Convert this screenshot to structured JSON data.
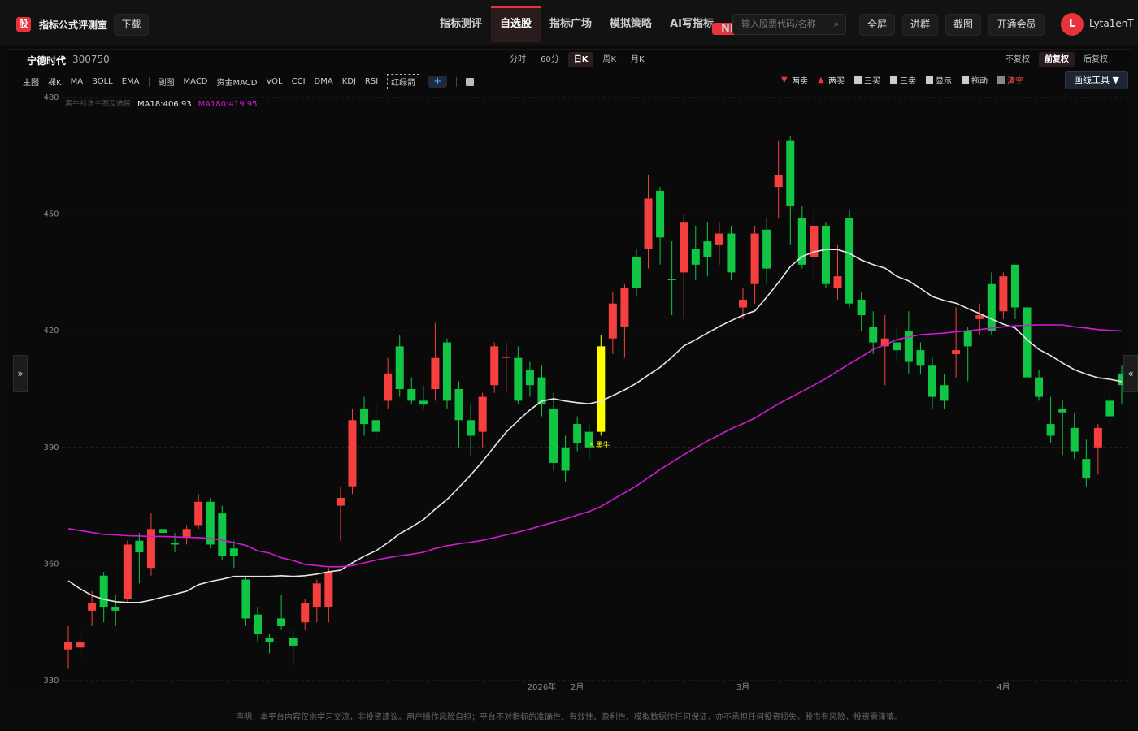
{
  "app": {
    "logo": "股",
    "title": "指标公式评测室",
    "download": "下载"
  },
  "nav": {
    "items": [
      "指标测评",
      "自选股",
      "指标广场",
      "模拟策略",
      "AI写指标"
    ],
    "active": 1,
    "badge": "NEW"
  },
  "search": {
    "placeholder": "输入股票代码/名称",
    "icon": "⌕"
  },
  "actions": [
    "全屏",
    "进群",
    "截图",
    "开通会员"
  ],
  "user": {
    "avatar": "L",
    "name": "Lyta1enT"
  },
  "stock": {
    "name": "宁德时代",
    "code": "300750"
  },
  "periods": {
    "items": [
      "分时",
      "60分",
      "日K",
      "周K",
      "月K"
    ],
    "active": 2
  },
  "adjust": {
    "items": [
      "不复权",
      "前复权",
      "后复权"
    ],
    "active": 1
  },
  "indicators": {
    "main_label": "主图",
    "main": [
      "裸K",
      "MA",
      "BOLL",
      "EMA"
    ],
    "sub_label": "副图",
    "sub": [
      "MACD",
      "资金MACD",
      "VOL",
      "CCI",
      "DMA",
      "KDJ",
      "RSI",
      "红绿箭"
    ],
    "add": "+"
  },
  "signals": [
    {
      "icon": "▼",
      "label": "两卖"
    },
    {
      "icon": "▲",
      "label": "两买"
    },
    {
      "label": "三买"
    },
    {
      "label": "三卖"
    },
    {
      "label": "显示"
    },
    {
      "label": "拖动"
    },
    {
      "label": "清空"
    }
  ],
  "draw_tool": "画线工具 ▼",
  "side": {
    "left": "»",
    "right": "«"
  },
  "chart_data": {
    "type": "candlestick",
    "indicator": "黑牛战法主图及选股",
    "categories": [
      null,
      null,
      null,
      null,
      null,
      null,
      null,
      null,
      null,
      null,
      null,
      null,
      null,
      null,
      null,
      null,
      null,
      null,
      null,
      null,
      null,
      null,
      null,
      null,
      null,
      null,
      null,
      null,
      null,
      null,
      null,
      null,
      null,
      null,
      null,
      null,
      null,
      null,
      null,
      null,
      "2026年",
      null,
      null,
      "2月",
      null,
      null,
      null,
      null,
      null,
      null,
      null,
      null,
      null,
      null,
      null,
      null,
      null,
      "3月",
      null,
      null,
      null,
      null,
      null,
      null,
      null,
      null,
      null,
      null,
      null,
      null,
      null,
      null,
      null,
      null,
      null,
      null,
      null,
      null,
      null,
      "4月",
      null,
      null,
      null,
      null,
      null,
      null,
      null,
      null,
      null,
      null
    ],
    "open": [
      338,
      338.5,
      348,
      357,
      349,
      351,
      366,
      359,
      369,
      365.5,
      367,
      370,
      376,
      373,
      364,
      356,
      347,
      341,
      346,
      341,
      345,
      349,
      349,
      375,
      380,
      400,
      397,
      402,
      416,
      405,
      402,
      405,
      417,
      405,
      397,
      394,
      406,
      413,
      413,
      410,
      408,
      400,
      390,
      396,
      394,
      394,
      418,
      421,
      439,
      441,
      456,
      433.3,
      435,
      441,
      443,
      442,
      445,
      426,
      432,
      446,
      457,
      469,
      449,
      439,
      447,
      431,
      449,
      428,
      421,
      416,
      417,
      420,
      415,
      411,
      406,
      414,
      420,
      423,
      432,
      425,
      437,
      426,
      408,
      396,
      400,
      395,
      387,
      390,
      402,
      409
    ],
    "high": [
      344,
      343,
      353,
      358,
      352,
      366,
      368,
      373,
      372,
      368,
      370,
      378,
      377,
      375,
      366,
      357,
      349,
      342,
      352,
      343,
      351,
      356,
      359,
      380,
      400,
      403,
      401,
      413,
      419,
      408,
      406,
      422,
      418,
      407,
      401,
      404,
      417,
      417,
      416,
      412,
      411,
      404,
      393,
      398,
      396,
      419,
      430,
      432,
      441,
      460,
      457,
      443,
      450,
      447,
      448,
      448,
      447,
      431,
      447,
      449,
      469,
      470,
      452,
      451,
      448,
      442,
      451,
      430,
      425,
      424,
      421,
      425,
      417,
      413,
      409,
      426,
      421,
      427,
      435,
      435,
      437,
      427,
      410,
      403,
      402,
      399,
      392,
      396,
      406,
      411
    ],
    "low": [
      333,
      336,
      344,
      345,
      344,
      350,
      355,
      357,
      364,
      363,
      365,
      369,
      364,
      361,
      359,
      344,
      340,
      337,
      343,
      334,
      343,
      345,
      345,
      366,
      378,
      393,
      392,
      400,
      403,
      401,
      400,
      402,
      400,
      390,
      388,
      390,
      404,
      404,
      401,
      403,
      398,
      384,
      381,
      389,
      387,
      393,
      414,
      413,
      429,
      436,
      437,
      424,
      423,
      433,
      434,
      437,
      433,
      423,
      427,
      432,
      449,
      442,
      436,
      433,
      431,
      428,
      426,
      420,
      414,
      406,
      412,
      409,
      409,
      400,
      400,
      408,
      407,
      419,
      419,
      423,
      423,
      406,
      402,
      391,
      388,
      387,
      380,
      383,
      396,
      401
    ],
    "close": [
      340,
      340,
      350,
      349,
      348,
      365,
      363,
      369,
      368,
      365,
      369,
      376,
      365,
      362,
      362,
      346,
      342,
      340,
      344,
      339,
      350,
      355,
      358,
      377,
      397,
      396,
      394,
      409,
      405,
      402,
      401,
      413,
      402,
      397,
      393,
      403,
      416,
      413.3,
      402,
      406,
      401,
      386,
      384,
      391,
      390,
      416,
      427,
      431,
      431,
      454,
      444,
      433,
      448,
      437,
      439,
      445,
      435,
      428,
      445,
      436,
      460,
      452,
      437,
      447,
      432,
      434,
      427,
      424,
      417,
      418,
      415,
      412,
      411,
      403,
      402,
      415,
      416,
      424,
      420,
      434,
      426,
      408,
      403,
      393,
      399,
      389,
      382,
      395,
      398,
      406
    ],
    "up_color": "#f5403f",
    "down_color": "#12c645",
    "highlight": {
      "index": 45,
      "color": "#ffff00",
      "label": "↖黑牛"
    },
    "overlays": [
      {
        "name": "MA18:406.93",
        "color": "#e6e6e6",
        "values": [
          355.7,
          353.6,
          351.9,
          350.9,
          350.3,
          350.1,
          350.1,
          350.7,
          351.5,
          352.2,
          353.0,
          354.7,
          355.5,
          356.1,
          356.8,
          356.8,
          356.8,
          356.8,
          357.0,
          356.8,
          357.0,
          357.4,
          358.0,
          358.4,
          360.3,
          362.0,
          363.4,
          365.5,
          367.8,
          369.5,
          371.4,
          374.1,
          376.6,
          379.7,
          382.9,
          386.4,
          390.2,
          393.9,
          396.9,
          399.6,
          401.9,
          402.5,
          401.9,
          401.5,
          401.2,
          401.9,
          403.3,
          404.8,
          406.5,
          408.6,
          410.6,
          413.2,
          416.1,
          417.7,
          419.4,
          421.1,
          422.6,
          424.0,
          425.1,
          428.6,
          432.4,
          436.5,
          439.1,
          440.3,
          440.9,
          440.9,
          439.9,
          438.2,
          437.0,
          436.1,
          434.0,
          432.8,
          430.9,
          428.8,
          427.8,
          427.1,
          425.7,
          424.4,
          423.0,
          421.7,
          420.7,
          417.7,
          415.2,
          413.6,
          411.7,
          410.0,
          408.8,
          407.9,
          407.5,
          406.93
        ]
      },
      {
        "name": "MA180:419.95",
        "color": "#d21ad2",
        "values": [
          369.1,
          368.6,
          368.1,
          367.6,
          367.5,
          367.3,
          367.2,
          367.1,
          367.1,
          367.0,
          366.9,
          366.8,
          366.6,
          366.1,
          365.5,
          364.8,
          363.4,
          362.8,
          361.6,
          360.9,
          359.9,
          359.6,
          359.3,
          359.3,
          359.6,
          360.3,
          361.0,
          361.6,
          362.1,
          362.5,
          363.0,
          364.0,
          364.7,
          365.2,
          365.6,
          366.1,
          366.8,
          367.5,
          368.2,
          369.0,
          369.9,
          370.7,
          371.6,
          372.6,
          373.5,
          374.8,
          376.6,
          378.3,
          380.1,
          382.2,
          384.3,
          386.2,
          388.1,
          389.9,
          391.6,
          393.2,
          394.8,
          396.1,
          397.5,
          399.4,
          401.2,
          402.8,
          404.4,
          406.0,
          407.7,
          409.6,
          411.5,
          413.3,
          415.2,
          416.4,
          417.7,
          418.4,
          419.0,
          419.2,
          419.4,
          419.7,
          420.0,
          420.3,
          420.7,
          421.0,
          421.3,
          421.4,
          421.5,
          421.5,
          421.5,
          421.0,
          420.7,
          420.3,
          420.1,
          419.95
        ]
      }
    ],
    "ylim": [
      330,
      480
    ],
    "yticks": [
      330,
      360,
      390,
      420,
      450,
      480
    ],
    "grid": true
  },
  "footer": "声明：本平台内容仅供学习交流，非投资建议。用户操作风险自担；平台不对指标的准确性、有效性、盈利性、模拟数据作任何保证，亦不承担任何投资损失。股市有风险，投资需谨慎。"
}
